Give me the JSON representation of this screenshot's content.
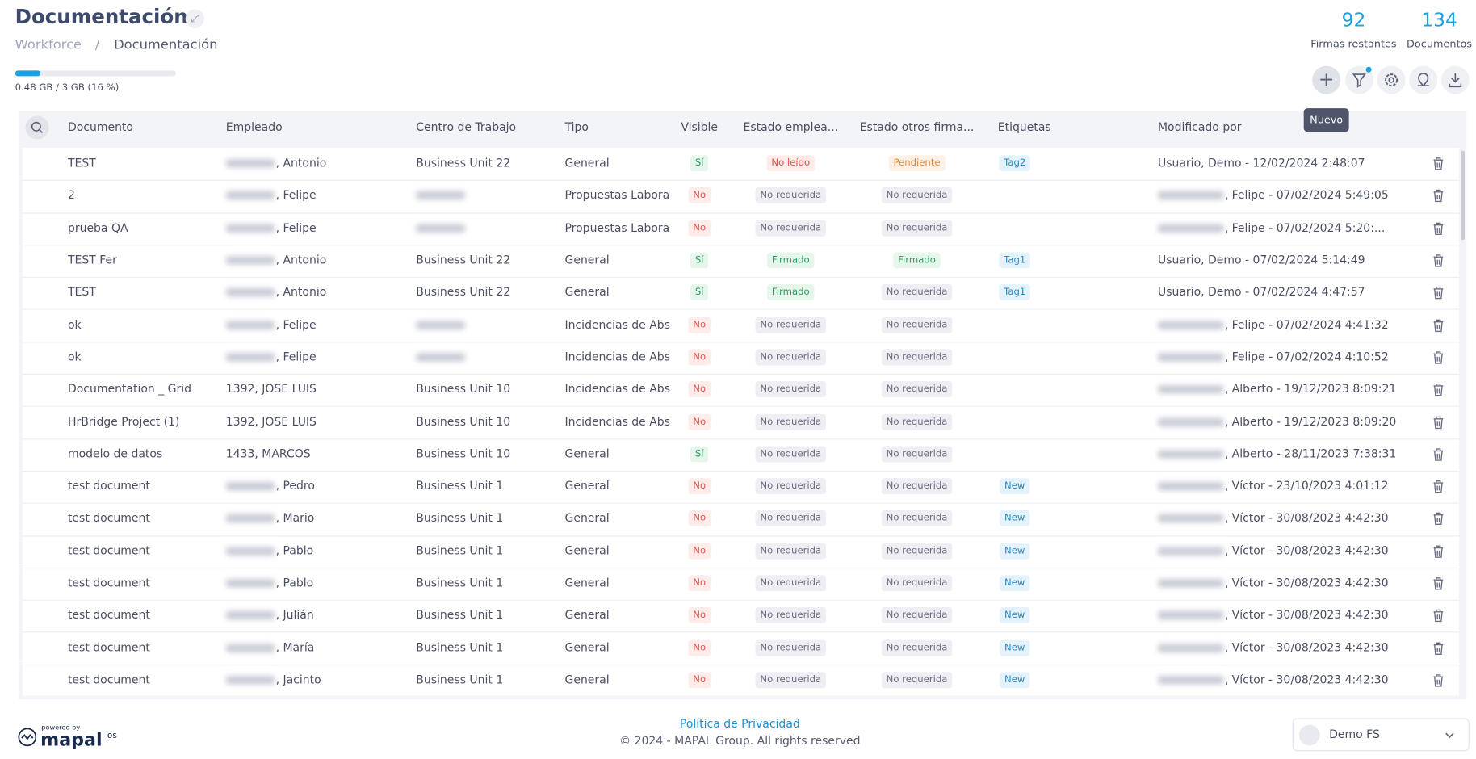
{
  "header": {
    "title": "Documentación",
    "breadcrumb": [
      "Workforce",
      "/",
      "Documentación"
    ],
    "storage": "0.48 GB / 3 GB (16 %)",
    "storage_percent": 16
  },
  "stats": [
    {
      "value": "92",
      "label": "Firmas restantes"
    },
    {
      "value": "134",
      "label": "Documentos"
    }
  ],
  "toolbar": {
    "tooltip": "Nuevo"
  },
  "table": {
    "columns": [
      "Documento",
      "Empleado",
      "Centro de Trabajo",
      "Tipo",
      "Visible",
      "Estado emplea...",
      "Estado otros firma...",
      "Etiquetas",
      "Modificado por"
    ],
    "rows": [
      [
        "TEST",
        ", Antonio",
        "Business Unit 22",
        "General",
        "Sí",
        "No leído",
        "Pendiente",
        "Tag2",
        "Usuario, Demo - 12/02/2024 2:48:07"
      ],
      [
        "2",
        ", Felipe",
        null,
        "Propuestas Laboral",
        "No",
        "No requerida",
        "No requerida",
        null,
        ", Felipe - 07/02/2024 5:49:05"
      ],
      [
        "prueba QA",
        ", Felipe",
        null,
        "Propuestas Laboral",
        "No",
        "No requerida",
        "No requerida",
        null,
        ", Felipe - 07/02/2024 5:20:..."
      ],
      [
        "TEST Fer",
        ", Antonio",
        "Business Unit 22",
        "General",
        "Sí",
        "Firmado",
        "Firmado",
        "Tag1",
        "Usuario, Demo - 07/02/2024 5:14:49"
      ],
      [
        "TEST",
        ", Antonio",
        "Business Unit 22",
        "General",
        "Sí",
        "Firmado",
        "No requerida",
        "Tag1",
        "Usuario, Demo - 07/02/2024 4:47:57"
      ],
      [
        "ok",
        ", Felipe",
        null,
        "Incidencias de Abse",
        "No",
        "No requerida",
        "No requerida",
        null,
        ", Felipe - 07/02/2024 4:41:32"
      ],
      [
        "ok",
        ", Felipe",
        null,
        "Incidencias de Abse",
        "No",
        "No requerida",
        "No requerida",
        null,
        ", Felipe - 07/02/2024 4:10:52"
      ],
      [
        "Documentation _ Grid",
        "1392, JOSE LUIS",
        "Business Unit 10",
        "Incidencias de Abse",
        "No",
        "No requerida",
        "No requerida",
        null,
        ", Alberto - 19/12/2023 8:09:21"
      ],
      [
        "HrBridge Project (1)",
        "1392, JOSE LUIS",
        "Business Unit 10",
        "Incidencias de Abse",
        "No",
        "No requerida",
        "No requerida",
        null,
        ", Alberto - 19/12/2023 8:09:20"
      ],
      [
        "modelo de datos",
        "1433, MARCOS",
        "Business Unit 10",
        "General",
        "Sí",
        "No requerida",
        "No requerida",
        null,
        ", Alberto - 28/11/2023 7:38:31"
      ],
      [
        "test document",
        ", Pedro",
        "Business Unit 1",
        "General",
        "No",
        "No requerida",
        "No requerida",
        "New",
        ", Víctor - 23/10/2023 4:01:12"
      ],
      [
        "test document",
        ", Mario",
        "Business Unit 1",
        "General",
        "No",
        "No requerida",
        "No requerida",
        "New",
        ", Víctor - 30/08/2023 4:42:30"
      ],
      [
        "test document",
        ", Pablo",
        "Business Unit 1",
        "General",
        "No",
        "No requerida",
        "No requerida",
        "New",
        ", Víctor - 30/08/2023 4:42:30"
      ],
      [
        "test document",
        ", Pablo",
        "Business Unit 1",
        "General",
        "No",
        "No requerida",
        "No requerida",
        "New",
        ", Víctor - 30/08/2023 4:42:30"
      ],
      [
        "test document",
        ", Julián",
        "Business Unit 1",
        "General",
        "No",
        "No requerida",
        "No requerida",
        "New",
        ", Víctor - 30/08/2023 4:42:30"
      ],
      [
        "test document",
        ", María",
        "Business Unit 1",
        "General",
        "No",
        "No requerida",
        "No requerida",
        "New",
        ", Víctor - 30/08/2023 4:42:30"
      ],
      [
        "test document",
        ", Jacinto",
        "Business Unit 1",
        "General",
        "No",
        "No requerida",
        "No requerida",
        "New",
        ", Víctor - 30/08/2023 4:42:30"
      ]
    ]
  },
  "footer": {
    "privacy": "Política de Privacidad",
    "copyright": "© 2024 - MAPAL Group. All rights reserved",
    "powered": "powered by",
    "brand": "mapal",
    "brand_suffix": "os",
    "account": "Demo FS"
  }
}
